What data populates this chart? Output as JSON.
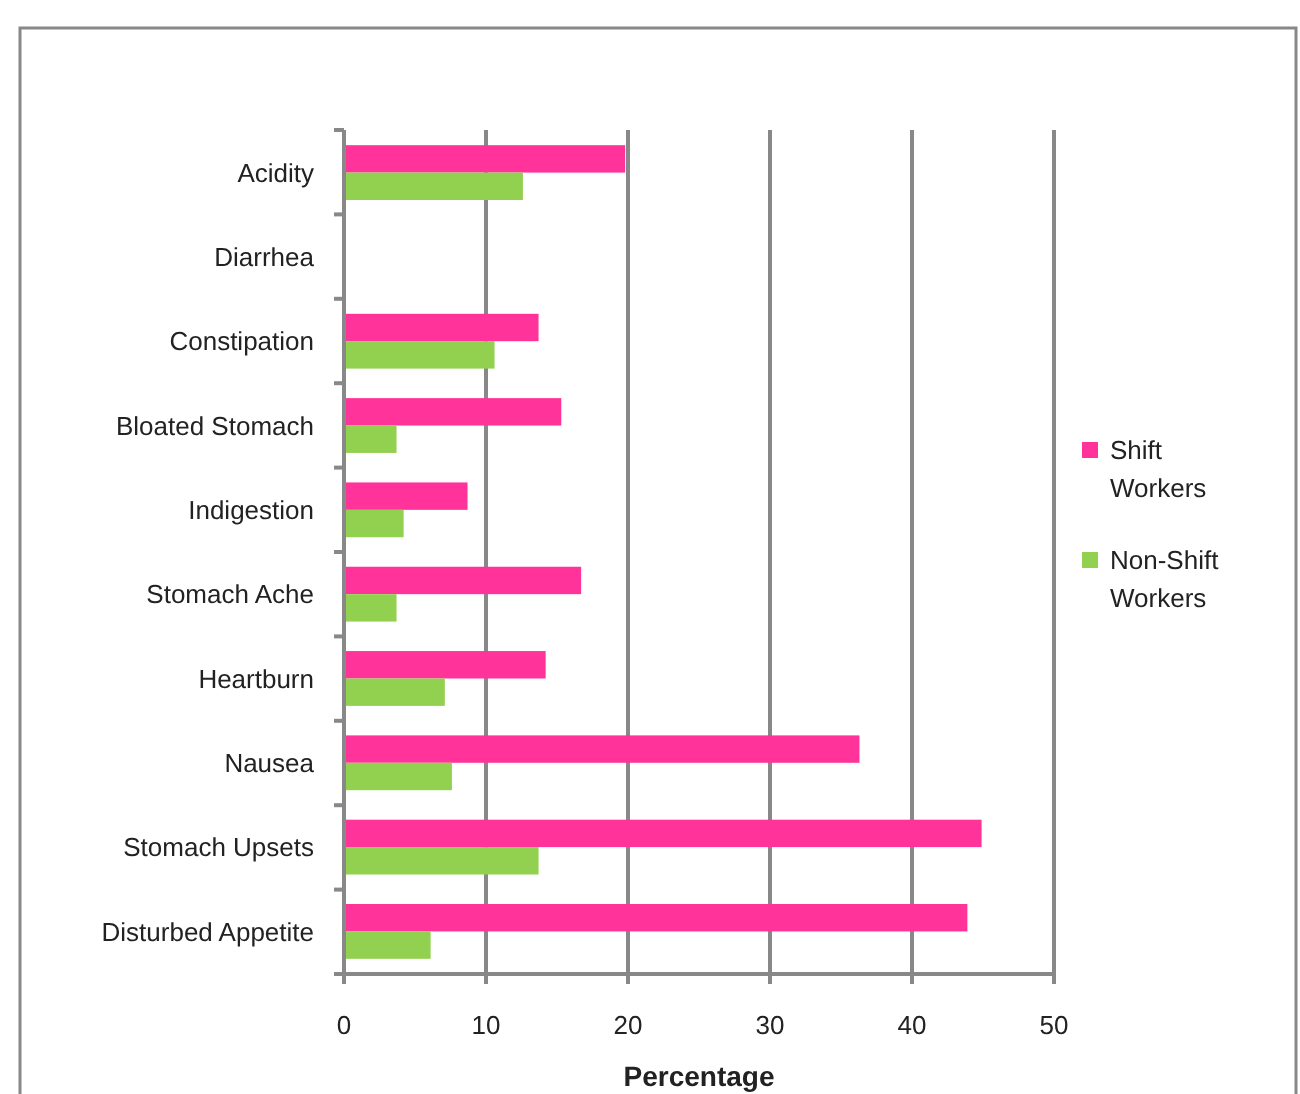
{
  "chart_data": {
    "type": "bar",
    "orientation": "horizontal",
    "xlabel": "Percentage",
    "categories": [
      "Acidity",
      "Diarrhea",
      "Constipation",
      "Bloated Stomach",
      "Indigestion",
      "Stomach Ache",
      "Heartburn",
      "Nausea",
      "Stomach Upsets",
      "Disturbed Appetite"
    ],
    "series": [
      {
        "name": "Shift Workers",
        "color": "#ff3399",
        "values": [
          19.8,
          0,
          13.7,
          15.3,
          8.7,
          16.7,
          14.2,
          36.3,
          44.9,
          43.9
        ]
      },
      {
        "name": "Non-Shift Workers",
        "color": "#92d050",
        "values": [
          12.6,
          0,
          10.6,
          3.7,
          4.2,
          3.7,
          7.1,
          7.6,
          13.7,
          6.1
        ]
      }
    ],
    "xlim": [
      0,
      50
    ],
    "xticks": [
      0,
      10,
      20,
      30,
      40,
      50
    ],
    "grid": "x",
    "legend": "right"
  }
}
